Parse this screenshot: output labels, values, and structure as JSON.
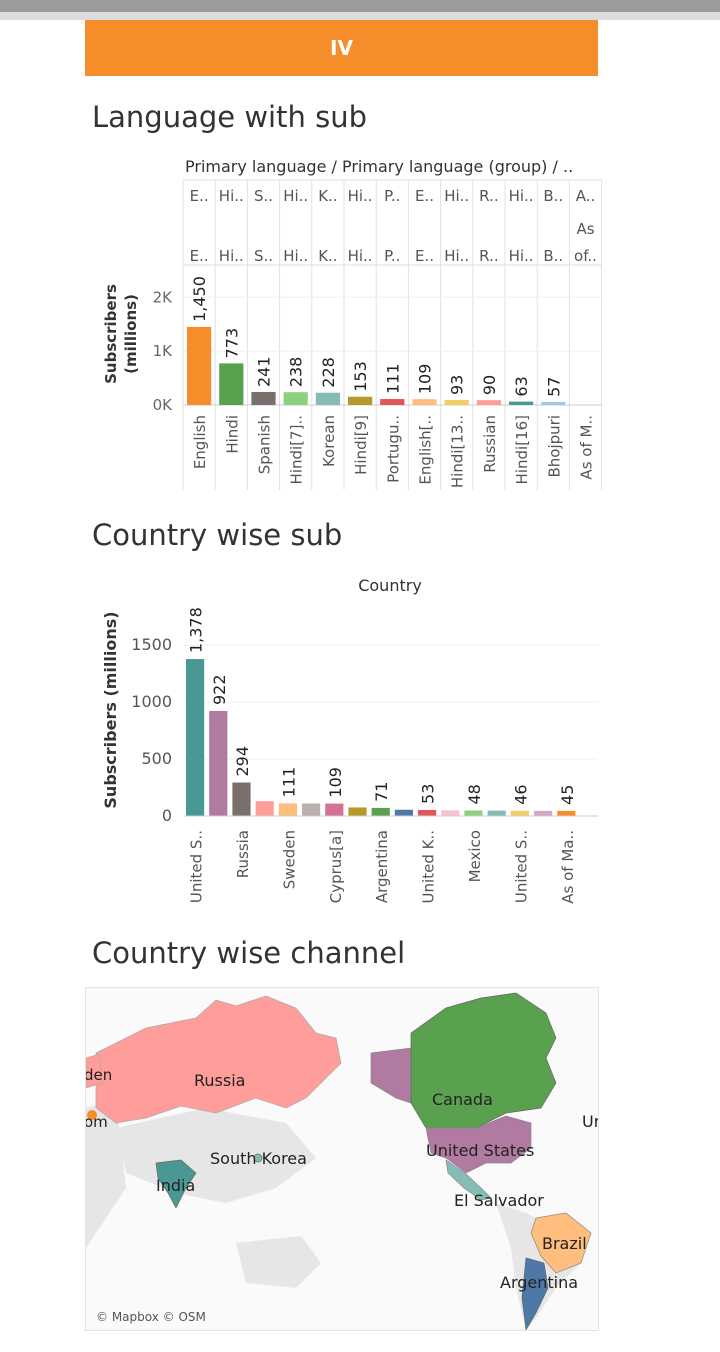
{
  "banner": {
    "label": "IV"
  },
  "sections": {
    "language": "Language with sub",
    "country": "Country wise sub",
    "map": "Country wise channel"
  },
  "colors": {
    "banner": "#f68d2b",
    "accent_orange": "#f68d2b"
  },
  "chart_data": [
    {
      "type": "bar",
      "header": "Primary language / Primary language (group) / ..",
      "ylabel": "Subscribers (millions)",
      "y_ticks": [
        "2K",
        "1K",
        "0K"
      ],
      "ylim": [
        0,
        2600
      ],
      "grid": true,
      "header_row1": [
        "E..",
        "Hi..",
        "S..",
        "Hi..",
        "K..",
        "Hi..",
        "P..",
        "E..",
        "Hi..",
        "R..",
        "Hi..",
        "B..",
        "A.."
      ],
      "header_row2": [
        "",
        "",
        "",
        "",
        "",
        "",
        "",
        "",
        "",
        "",
        "",
        "",
        "As"
      ],
      "header_row3": [
        "E..",
        "Hi..",
        "S..",
        "Hi..",
        "K..",
        "Hi..",
        "P..",
        "E..",
        "Hi..",
        "R..",
        "Hi..",
        "B..",
        "of.."
      ],
      "categories": [
        "English",
        "Hindi",
        "Spanish",
        "Hindi[7]..",
        "Korean",
        "Hindi[9]",
        "Portugu..",
        "English[..",
        "Hindi[13..",
        "Russian",
        "Hindi[16]",
        "Bhojpuri",
        "As of M.."
      ],
      "values": [
        1450,
        773,
        241,
        238,
        228,
        153,
        111,
        109,
        93,
        90,
        63,
        57,
        null
      ],
      "data_labels": [
        "1,450",
        "773",
        "241",
        "238",
        "228",
        "153",
        "111",
        "109",
        "93",
        "90",
        "63",
        "57",
        ""
      ],
      "colors": [
        "#f68d2b",
        "#59a14f",
        "#79706e",
        "#8cd17d",
        "#86bcb6",
        "#b6992d",
        "#e15759",
        "#ffbe7d",
        "#f1ce63",
        "#ff9d9a",
        "#499894",
        "#a0cbe8",
        "#cccccc"
      ]
    },
    {
      "type": "bar",
      "header": "Country",
      "ylabel": "Subscribers (millions)",
      "y_ticks": [
        1500,
        1000,
        500,
        0
      ],
      "ylim": [
        0,
        1800
      ],
      "grid": true,
      "categories": [
        "United S..",
        "",
        "Russia",
        "",
        "Sweden",
        "",
        "Cyprus[a]",
        "",
        "Argentina",
        "",
        "United K..",
        "",
        "Mexico",
        "",
        "United S..",
        "",
        "As of Ma.."
      ],
      "values": [
        1378,
        922,
        294,
        130,
        111,
        110,
        109,
        75,
        71,
        55,
        53,
        50,
        48,
        47,
        46,
        45,
        45
      ],
      "data_labels": [
        "1,378",
        "922",
        "294",
        "",
        "111",
        "",
        "109",
        "",
        "71",
        "",
        "53",
        "",
        "48",
        "",
        "46",
        "",
        "45"
      ],
      "colors": [
        "#499894",
        "#b07aa1",
        "#79706e",
        "#ff9d9a",
        "#ffbe7d",
        "#bab0ac",
        "#d37295",
        "#b6992d",
        "#59a14f",
        "#4e79a7",
        "#e15759",
        "#fabfd2",
        "#8cd17d",
        "#86bcb6",
        "#f1ce63",
        "#d4a6c8",
        "#f68d2b"
      ]
    }
  ],
  "map": {
    "labels": [
      "Russia",
      "Canada",
      "United States",
      "South Korea",
      "India",
      "El Salvador",
      "Brazil",
      "Argentina",
      "den",
      "om",
      "Ur"
    ],
    "attribution": "© Mapbox © OSM"
  }
}
